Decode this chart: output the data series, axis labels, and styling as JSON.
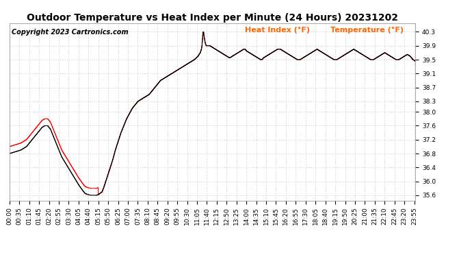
{
  "title": "Outdoor Temperature vs Heat Index per Minute (24 Hours) 20231202",
  "copyright": "Copyright 2023 Cartronics.com",
  "legend_heat": "Heat Index (°F)",
  "legend_temp": "Temperature (°F)",
  "ylabel_values": [
    35.6,
    36.0,
    36.4,
    36.8,
    37.2,
    37.6,
    38.0,
    38.3,
    38.7,
    39.1,
    39.5,
    39.9,
    40.3
  ],
  "ylim": [
    35.45,
    40.55
  ],
  "color_heat": "#ff0000",
  "color_temp": "#000000",
  "color_legend_text": "#ff6600",
  "background_color": "#ffffff",
  "grid_color": "#aaaaaa",
  "title_fontsize": 10,
  "copyright_fontsize": 7,
  "legend_fontsize": 8,
  "tick_fontsize": 6.5
}
